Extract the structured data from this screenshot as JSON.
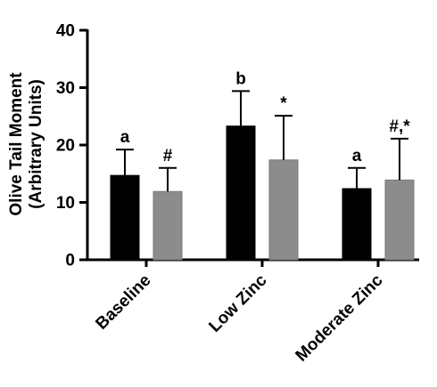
{
  "chart_data": {
    "type": "bar",
    "title": "",
    "ylabel": [
      "Olive Tail Moment",
      "(Arbitrary Units)"
    ],
    "xlabel": "",
    "ylim": [
      0,
      40
    ],
    "yticks": [
      0,
      10,
      20,
      30,
      40
    ],
    "categories": [
      "Baseline",
      "Low Zinc",
      "Moderate Zinc"
    ],
    "grid": false,
    "legend": "none",
    "series": [
      {
        "color": "#000000",
        "values": [
          14.7,
          23.3,
          12.4
        ],
        "errors": [
          4.5,
          6.1,
          3.6
        ],
        "annotations": [
          "a",
          "b",
          "a"
        ]
      },
      {
        "color": "#8c8c8c",
        "values": [
          11.9,
          17.4,
          13.9
        ],
        "errors": [
          4.1,
          7.7,
          7.2
        ],
        "annotations": [
          "#",
          "*",
          "#,*"
        ]
      }
    ]
  }
}
